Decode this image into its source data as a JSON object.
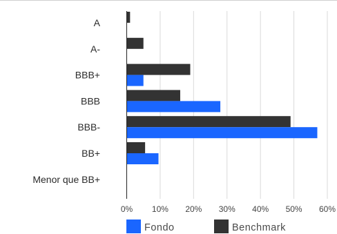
{
  "chart_data": {
    "type": "bar",
    "orientation": "horizontal",
    "categories": [
      "A",
      "A-",
      "BBB+",
      "BBB",
      "BBB-",
      "BB+",
      "Menor que BB+"
    ],
    "series": [
      {
        "name": "Benchmark",
        "color": "#333333",
        "values": [
          1,
          5,
          19,
          16,
          49,
          5.5,
          0
        ]
      },
      {
        "name": "Fondo",
        "color": "#1a66ff",
        "values": [
          0,
          0,
          5,
          28,
          57,
          9.5,
          0
        ]
      }
    ],
    "xlim": [
      0,
      60
    ],
    "xticks": [
      0,
      10,
      20,
      30,
      40,
      50,
      60
    ],
    "xtick_labels": [
      "0%",
      "10%",
      "20%",
      "30%",
      "40%",
      "50%",
      "60%"
    ],
    "grid": "vertical",
    "legend": {
      "position": "bottom",
      "items": [
        "Fondo",
        "Benchmark"
      ]
    }
  }
}
